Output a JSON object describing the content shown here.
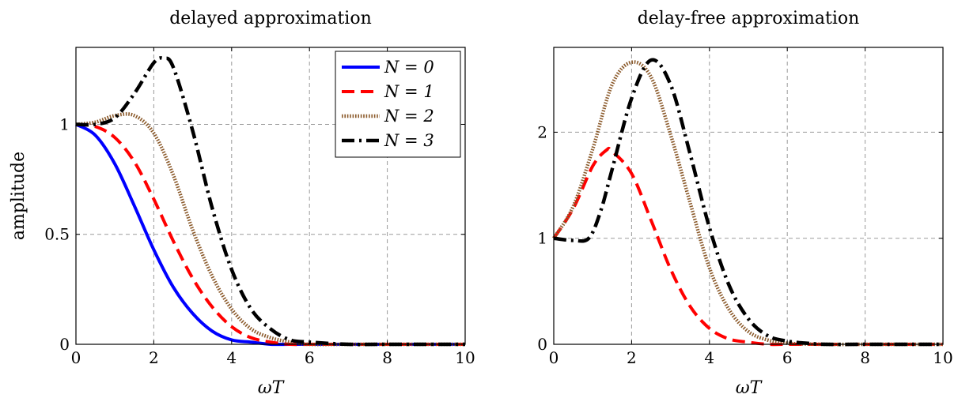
{
  "chart_data": [
    {
      "type": "line",
      "title": "delayed approximation",
      "xlabel": "ωT",
      "ylabel": "amplitude",
      "xlim": [
        0,
        10
      ],
      "ylim": [
        0,
        1.35
      ],
      "xticks": [
        "0",
        "2",
        "4",
        "6",
        "8",
        "10"
      ],
      "yticks": [
        "0",
        "0.5",
        "1"
      ],
      "grid": true,
      "legend": "top-right",
      "series": [
        {
          "name": "N = 0",
          "color": "#0000ff",
          "style": "solid",
          "x": [
            0,
            0.5,
            1,
            1.5,
            2,
            2.5,
            3,
            3.5,
            4,
            4.5,
            5,
            5.5,
            6,
            7,
            8,
            10
          ],
          "y": [
            1.0,
            0.95,
            0.82,
            0.63,
            0.43,
            0.26,
            0.14,
            0.06,
            0.02,
            0.01,
            0.0,
            0.0,
            0.0,
            0.0,
            0.0,
            0.0
          ]
        },
        {
          "name": "N = 1",
          "color": "#ff0000",
          "style": "dashed",
          "x": [
            0,
            0.5,
            1,
            1.5,
            2,
            2.5,
            3,
            3.5,
            4,
            4.5,
            5,
            5.5,
            6,
            7,
            8,
            10
          ],
          "y": [
            1.0,
            0.99,
            0.94,
            0.83,
            0.66,
            0.47,
            0.3,
            0.17,
            0.08,
            0.03,
            0.01,
            0.0,
            0.0,
            0.0,
            0.0,
            0.0
          ]
        },
        {
          "name": "N = 2",
          "color": "#8b5a2b",
          "style": "dotted",
          "x": [
            0,
            0.5,
            1,
            1.5,
            2,
            2.5,
            3,
            3.5,
            4,
            4.5,
            5,
            5.5,
            6,
            7,
            8,
            10
          ],
          "y": [
            1.0,
            1.01,
            1.04,
            1.04,
            0.96,
            0.77,
            0.52,
            0.31,
            0.16,
            0.07,
            0.03,
            0.01,
            0.0,
            0.0,
            0.0,
            0.0
          ]
        },
        {
          "name": "N = 3",
          "color": "#000000",
          "style": "dashdot",
          "x": [
            0,
            0.5,
            1,
            1.5,
            2,
            2.25,
            2.5,
            3,
            3.5,
            4,
            4.5,
            5,
            5.5,
            6,
            7,
            8,
            10
          ],
          "y": [
            1.0,
            1.0,
            1.03,
            1.14,
            1.28,
            1.3,
            1.26,
            0.97,
            0.62,
            0.34,
            0.16,
            0.07,
            0.02,
            0.01,
            0.0,
            0.0,
            0.0
          ]
        }
      ]
    },
    {
      "type": "line",
      "title": "delay-free approximation",
      "xlabel": "ωT",
      "ylabel": "",
      "xlim": [
        0,
        10
      ],
      "ylim": [
        0,
        2.8
      ],
      "xticks": [
        "0",
        "2",
        "4",
        "6",
        "8",
        "10"
      ],
      "yticks": [
        "0",
        "1",
        "2"
      ],
      "grid": true,
      "legend": "",
      "series": [
        {
          "color": "#ff0000",
          "style": "dashed",
          "x": [
            0,
            0.5,
            1,
            1.35,
            1.5,
            2,
            2.5,
            3,
            3.5,
            4,
            4.5,
            5,
            5.5,
            6,
            7,
            8,
            10
          ],
          "y": [
            1.0,
            1.28,
            1.68,
            1.83,
            1.82,
            1.61,
            1.17,
            0.71,
            0.36,
            0.15,
            0.05,
            0.02,
            0.0,
            0.0,
            0.0,
            0.0,
            0.0
          ]
        },
        {
          "color": "#8b5a2b",
          "style": "dotted",
          "x": [
            0,
            0.5,
            1,
            1.5,
            2,
            2.5,
            3,
            3.5,
            4,
            4.5,
            5,
            5.5,
            6,
            7,
            8,
            10
          ],
          "y": [
            1.0,
            1.3,
            1.84,
            2.45,
            2.66,
            2.52,
            1.98,
            1.34,
            0.72,
            0.33,
            0.12,
            0.04,
            0.01,
            0.0,
            0.0,
            0.0
          ]
        },
        {
          "color": "#000000",
          "style": "dashdot",
          "x": [
            0,
            0.5,
            0.9,
            1.2,
            1.5,
            2,
            2.5,
            3,
            3.5,
            4,
            4.5,
            5,
            5.5,
            6,
            6.5,
            7,
            8,
            10
          ],
          "y": [
            1.0,
            0.98,
            1.0,
            1.25,
            1.65,
            2.32,
            2.68,
            2.45,
            1.8,
            1.1,
            0.56,
            0.24,
            0.08,
            0.03,
            0.01,
            0.0,
            0.0,
            0.0
          ]
        }
      ]
    }
  ]
}
